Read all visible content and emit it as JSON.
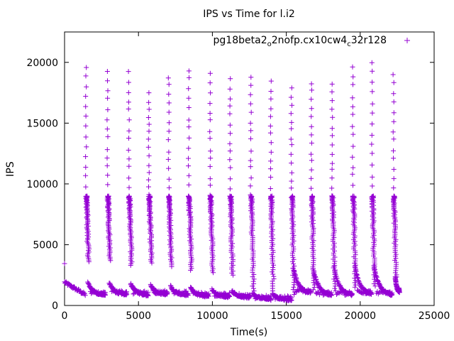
{
  "chart_data": {
    "type": "scatter",
    "title": "IPS vs Time for l.i2",
    "xlabel": "Time(s)",
    "ylabel": "IPS",
    "xlim": [
      0,
      25000
    ],
    "ylim": [
      0,
      22500
    ],
    "x_ticks": [
      0,
      5000,
      10000,
      15000,
      20000,
      25000
    ],
    "y_ticks": [
      0,
      5000,
      10000,
      15000,
      20000
    ],
    "grid": false,
    "legend_position": "top-right",
    "series": [
      {
        "name_parts": [
          "pg18beta2",
          "o",
          "2nofp.cx10cw4",
          "c",
          "32r128"
        ],
        "color": "#9400d3",
        "marker": "plus",
        "baseline_point": [
          0,
          3450
        ],
        "cycles": [
          {
            "burst_x": 1450,
            "peak": 19600,
            "low": 3600,
            "tail_end": 2800,
            "tail_start": 1900,
            "tail_floor": 850
          },
          {
            "burst_x": 2900,
            "peak": 19300,
            "low": 3700,
            "tail_end": 4250,
            "tail_start": 1850,
            "tail_floor": 900
          },
          {
            "burst_x": 4350,
            "peak": 19200,
            "low": 3300,
            "tail_end": 5700,
            "tail_start": 1800,
            "tail_floor": 850
          },
          {
            "burst_x": 5700,
            "peak": 17500,
            "low": 3500,
            "tail_end": 7000,
            "tail_start": 1650,
            "tail_floor": 900
          },
          {
            "burst_x": 7050,
            "peak": 18800,
            "low": 3200,
            "tail_end": 8400,
            "tail_start": 1600,
            "tail_floor": 850
          },
          {
            "burst_x": 8400,
            "peak": 19400,
            "low": 2900,
            "tail_end": 9800,
            "tail_start": 1450,
            "tail_floor": 750
          },
          {
            "burst_x": 9850,
            "peak": 19000,
            "low": 2700,
            "tail_end": 11200,
            "tail_start": 1300,
            "tail_floor": 700
          },
          {
            "burst_x": 11200,
            "peak": 18600,
            "low": 2500,
            "tail_end": 12600,
            "tail_start": 1200,
            "tail_floor": 650
          },
          {
            "burst_x": 12600,
            "peak": 18900,
            "low": 1200,
            "tail_end": 14000,
            "tail_start": 1000,
            "tail_floor": 500
          },
          {
            "burst_x": 13950,
            "peak": 18500,
            "low": 1000,
            "tail_end": 15400,
            "tail_start": 900,
            "tail_floor": 450
          },
          {
            "burst_x": 15350,
            "peak": 17900,
            "low": 900,
            "tail_end": 16700,
            "tail_start": 3100,
            "tail_floor": 1000
          },
          {
            "burst_x": 16700,
            "peak": 18300,
            "low": 1300,
            "tail_end": 18100,
            "tail_start": 3000,
            "tail_floor": 800
          },
          {
            "burst_x": 18100,
            "peak": 18200,
            "low": 1200,
            "tail_end": 19500,
            "tail_start": 3200,
            "tail_floor": 800
          },
          {
            "burst_x": 19500,
            "peak": 19700,
            "low": 1500,
            "tail_end": 20800,
            "tail_start": 3400,
            "tail_floor": 900
          },
          {
            "burst_x": 20800,
            "peak": 20000,
            "low": 1600,
            "tail_end": 22200,
            "tail_start": 3300,
            "tail_floor": 800
          },
          {
            "burst_x": 22250,
            "peak": 19000,
            "low": 1800,
            "tail_end": 22700,
            "tail_start": 2400,
            "tail_floor": 1100
          }
        ]
      }
    ]
  }
}
